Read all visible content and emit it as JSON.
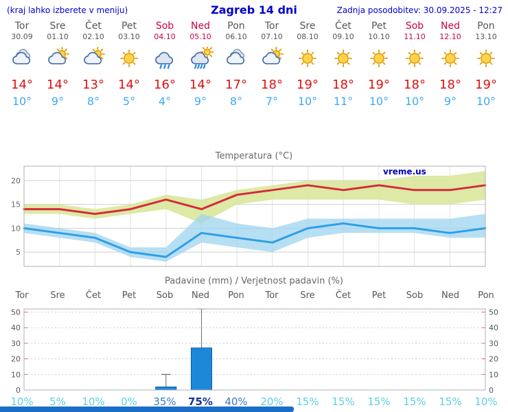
{
  "header": {
    "menu_hint": "(kraj lahko izberete v meniju)",
    "title": "Zagreb 14 dni",
    "last_update": "Zadnja posodobitev: 30.09.2025 - 12:27"
  },
  "watermark": "vreme.us",
  "days": [
    {
      "name": "Tor",
      "date": "30.09",
      "weekend": false,
      "icon": "cloudy",
      "tmax_label": "14°",
      "tmin_label": "10°"
    },
    {
      "name": "Sre",
      "date": "01.10",
      "weekend": false,
      "icon": "partly-cloudy",
      "tmax_label": "14°",
      "tmin_label": "9°"
    },
    {
      "name": "Čet",
      "date": "02.10",
      "weekend": false,
      "icon": "partly-cloudy",
      "tmax_label": "13°",
      "tmin_label": "8°"
    },
    {
      "name": "Pet",
      "date": "03.10",
      "weekend": false,
      "icon": "sunny",
      "tmax_label": "14°",
      "tmin_label": "5°"
    },
    {
      "name": "Sob",
      "date": "04.10",
      "weekend": true,
      "icon": "rain",
      "tmax_label": "16°",
      "tmin_label": "4°"
    },
    {
      "name": "Ned",
      "date": "05.10",
      "weekend": true,
      "icon": "rain-sun",
      "tmax_label": "14°",
      "tmin_label": "9°"
    },
    {
      "name": "Pon",
      "date": "06.10",
      "weekend": false,
      "icon": "cloudy",
      "tmax_label": "17°",
      "tmin_label": "8°"
    },
    {
      "name": "Tor",
      "date": "07.10",
      "weekend": false,
      "icon": "partly-cloudy",
      "tmax_label": "18°",
      "tmin_label": "7°"
    },
    {
      "name": "Sre",
      "date": "08.10",
      "weekend": false,
      "icon": "sunny",
      "tmax_label": "19°",
      "tmin_label": "10°"
    },
    {
      "name": "Čet",
      "date": "09.10",
      "weekend": false,
      "icon": "sunny",
      "tmax_label": "18°",
      "tmin_label": "11°"
    },
    {
      "name": "Pet",
      "date": "10.10",
      "weekend": false,
      "icon": "sunny",
      "tmax_label": "19°",
      "tmin_label": "10°"
    },
    {
      "name": "Sob",
      "date": "11.10",
      "weekend": true,
      "icon": "sunny",
      "tmax_label": "18°",
      "tmin_label": "10°"
    },
    {
      "name": "Ned",
      "date": "12.10",
      "weekend": true,
      "icon": "sunny",
      "tmax_label": "18°",
      "tmin_label": "9°"
    },
    {
      "name": "Pon",
      "date": "13.10",
      "weekend": false,
      "icon": "sunny",
      "tmax_label": "19°",
      "tmin_label": "10°"
    }
  ],
  "chart_data": [
    {
      "type": "line",
      "title": "Temperatura (°C)",
      "x_labels": [
        "Tor 30.09",
        "Sre 01.10",
        "Čet 02.10",
        "Pet 03.10",
        "Sob 04.10",
        "Ned 05.10",
        "Pon 06.10",
        "Tor 07.10",
        "Sre 08.10",
        "Čet 09.10",
        "Pet 10.10",
        "Sob 11.10",
        "Ned 12.10",
        "Pon 13.10"
      ],
      "ylim": [
        2,
        23
      ],
      "yticks": [
        5,
        10,
        15,
        20
      ],
      "grid": true,
      "legend_position": "none",
      "series": [
        {
          "name": "max-temperature",
          "color": "#d42b3a",
          "values": [
            14,
            14,
            13,
            14,
            16,
            14,
            17,
            18,
            19,
            18,
            19,
            18,
            18,
            19
          ]
        },
        {
          "name": "min-temperature",
          "color": "#2e9fe6",
          "values": [
            10,
            9,
            8,
            5,
            4,
            9,
            8,
            7,
            10,
            11,
            10,
            10,
            9,
            10
          ]
        }
      ],
      "bands": [
        {
          "name": "max-temperature-range",
          "color": "#d9e79b",
          "opacity": 0.9,
          "upper": [
            15,
            15,
            14,
            15,
            17,
            16,
            18,
            19,
            20,
            20,
            20,
            21,
            21,
            22
          ],
          "lower": [
            13,
            13,
            12,
            13,
            14,
            11,
            15,
            16,
            16,
            16,
            16,
            15,
            15,
            16
          ]
        },
        {
          "name": "min-temperature-range",
          "color": "#9fd4ef",
          "opacity": 0.75,
          "upper": [
            11,
            10,
            9,
            6,
            6,
            13,
            11,
            10,
            12,
            12,
            12,
            12,
            12,
            13
          ],
          "lower": [
            9,
            8,
            7,
            4,
            3,
            7,
            6,
            5,
            8,
            9,
            9,
            9,
            8,
            8
          ]
        }
      ]
    },
    {
      "type": "bar",
      "title": "Padavine (mm) / Verjetnost padavin (%)",
      "categories": [
        "Tor",
        "Sre",
        "Čet",
        "Pet",
        "Sob",
        "Ned",
        "Pon",
        "Tor",
        "Sre",
        "Čet",
        "Pet",
        "Sob",
        "Ned",
        "Pon"
      ],
      "weekend_flags": [
        false,
        false,
        false,
        false,
        true,
        true,
        false,
        false,
        false,
        false,
        false,
        true,
        true,
        false
      ],
      "values": [
        0,
        0,
        0,
        0,
        2,
        27,
        0,
        0,
        0,
        0,
        0,
        0,
        0,
        0
      ],
      "range_max": [
        0,
        0,
        0,
        0,
        10,
        52,
        0,
        0,
        0,
        0,
        0,
        0,
        0,
        0
      ],
      "probabilities": [
        "10%",
        "5%",
        "10%",
        "0%",
        "35%",
        "75%",
        "40%",
        "20%",
        "15%",
        "15%",
        "15%",
        "15%",
        "15%",
        "10%"
      ],
      "prob_emphasis": [
        0,
        0,
        0,
        0,
        1,
        2,
        1,
        0,
        0,
        0,
        0,
        0,
        0,
        0
      ],
      "ylim": [
        0,
        52
      ],
      "yticks": [
        0,
        10,
        20,
        30,
        40,
        50
      ],
      "bar_color": "#1e88d8",
      "grid": true
    }
  ],
  "colors": {
    "header_blue": "#0000cc",
    "weekday_gray": "#555555",
    "weekend_red": "#cc0044",
    "tmax_red": "#e01010",
    "tmin_blue": "#3fa9f5",
    "max_line": "#d42b3a",
    "min_line": "#2e9fe6",
    "max_band": "#d9e79b",
    "min_band": "#9fd4ef",
    "bar_blue": "#1e88d8",
    "prob_light": "#5bcfe6",
    "prob_medium": "#3a78c8",
    "prob_strong": "#16339e",
    "footer_bar": "#1b6ec8"
  }
}
